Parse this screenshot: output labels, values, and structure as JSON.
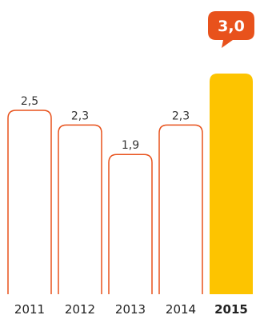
{
  "chart_data": {
    "type": "bar",
    "categories": [
      "2011",
      "2012",
      "2013",
      "2014",
      "2015"
    ],
    "values": [
      2.5,
      2.3,
      1.9,
      2.3,
      3.0
    ],
    "value_labels": [
      "2,5",
      "2,3",
      "1,9",
      "2,3",
      "3,0"
    ],
    "highlight_index": 4,
    "title": "",
    "xlabel": "",
    "ylabel": "",
    "ylim": [
      0,
      3.0
    ],
    "grid": false,
    "colors": {
      "outline": "#E8521C",
      "highlight_fill": "#FDC400",
      "callout_fill": "#E8521C",
      "callout_text": "#FFFFFF"
    }
  }
}
